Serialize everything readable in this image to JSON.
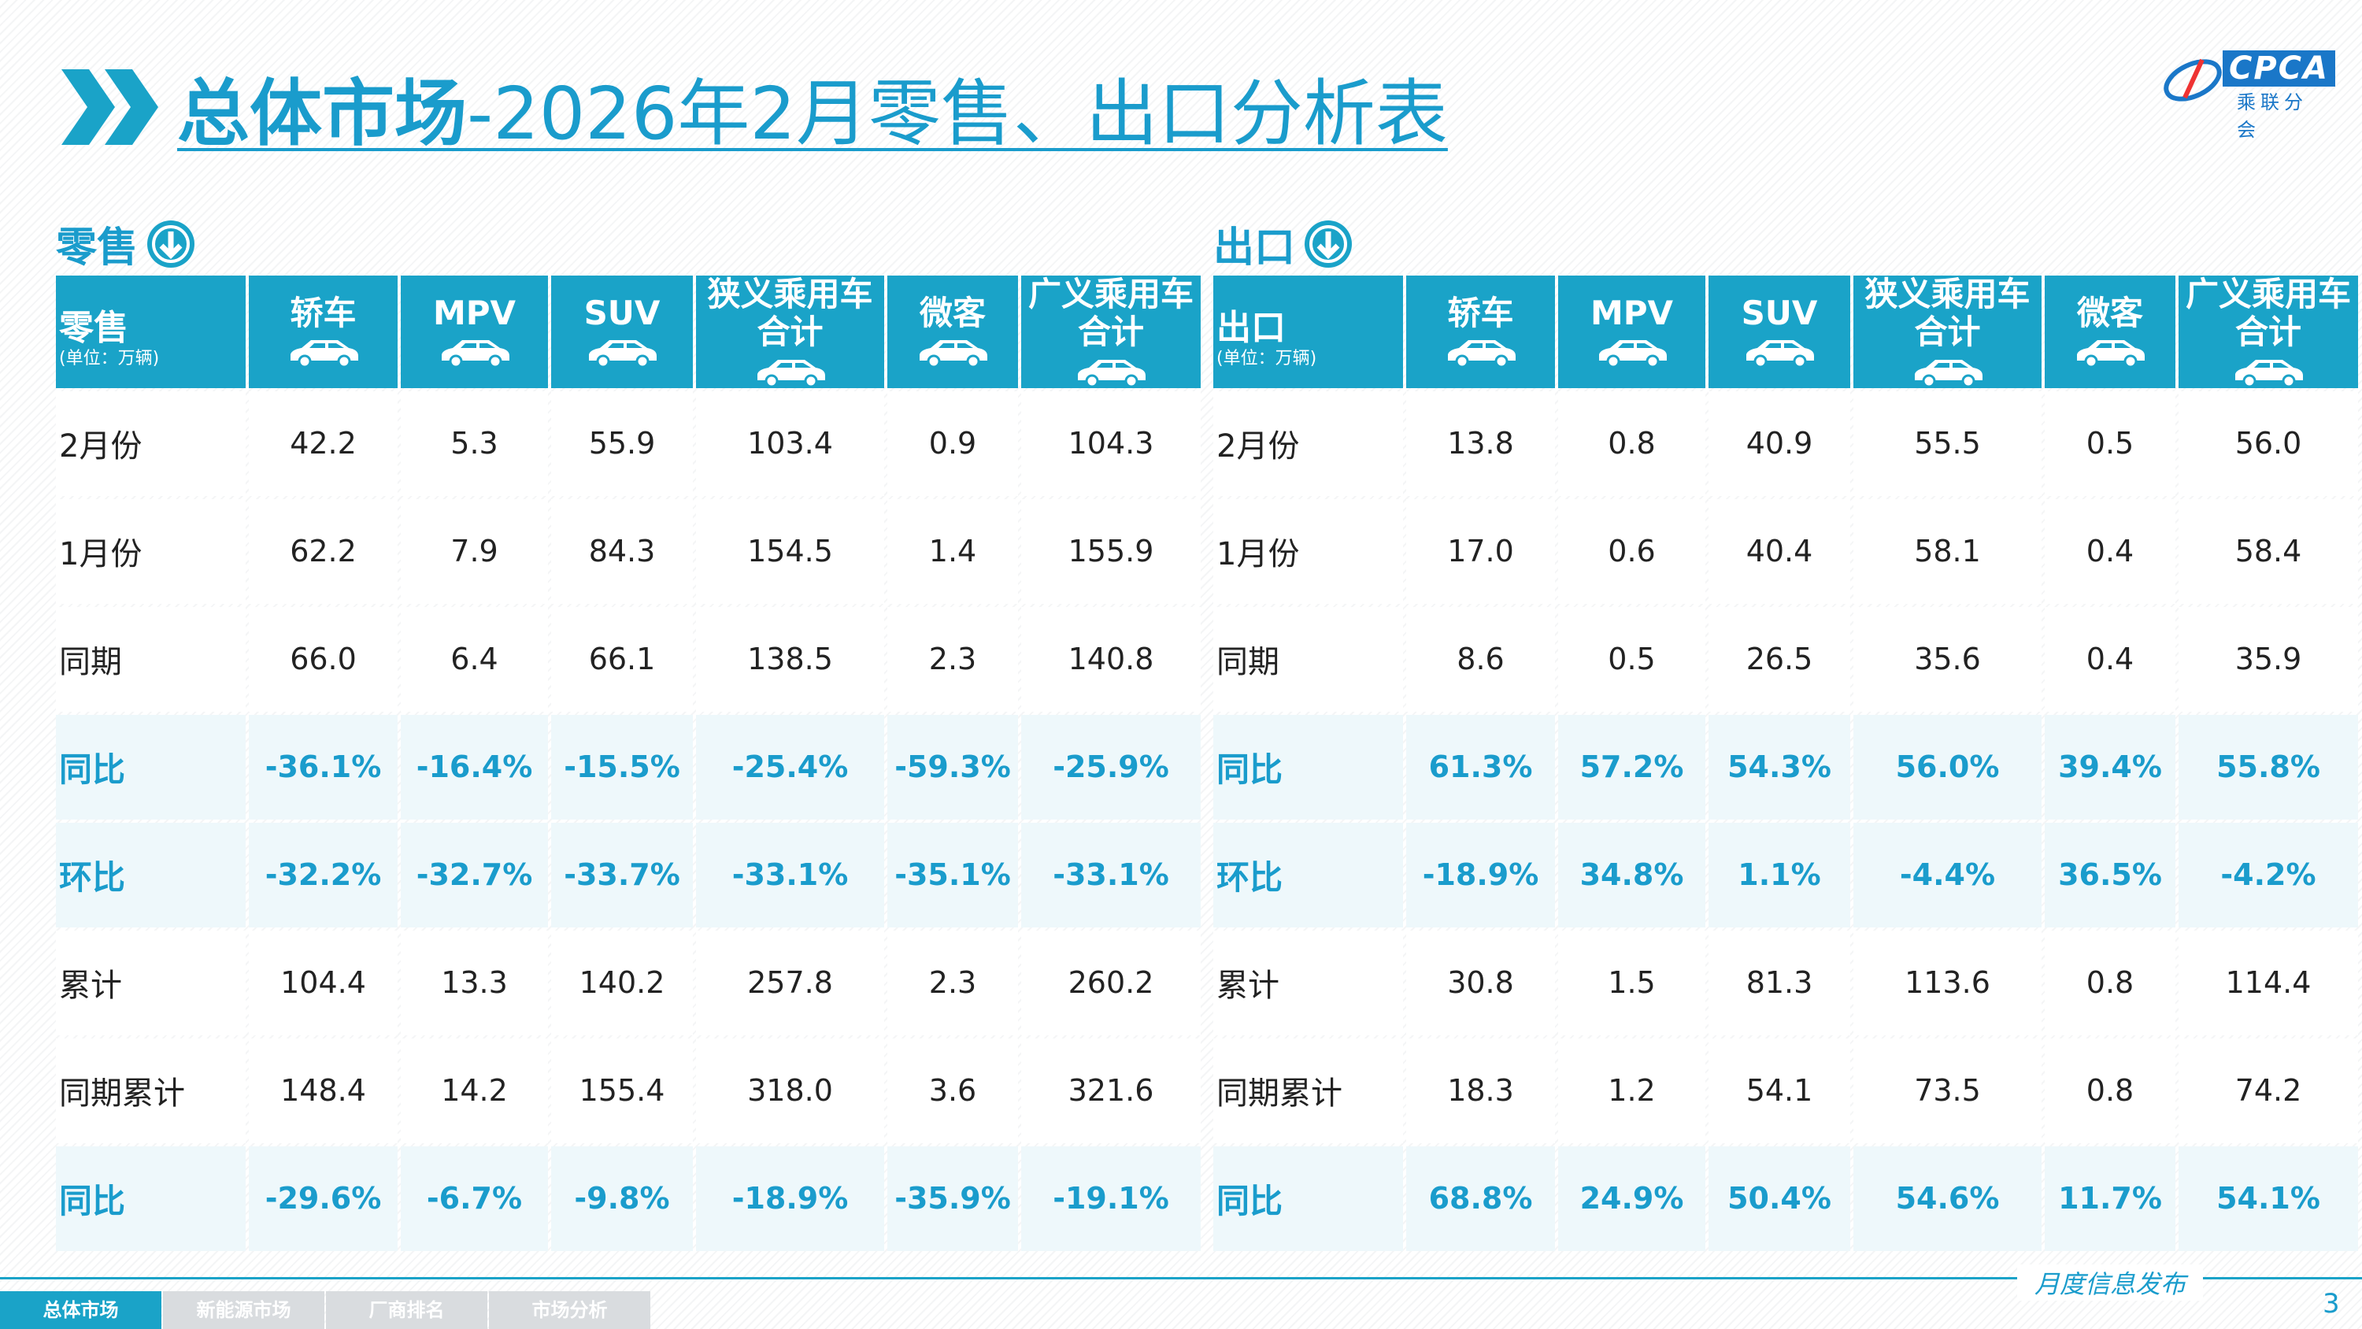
{
  "header": {
    "title_bold": "总体市场",
    "title_rest": "-2026年2月零售、出口分析表"
  },
  "logo": {
    "text": "CPCA",
    "sub": "乘联分会"
  },
  "tables": [
    {
      "label": "零售",
      "corner": "零售",
      "unit": "(单位：万辆)",
      "columns": [
        [
          "轿车"
        ],
        [
          "MPV"
        ],
        [
          "SUV"
        ],
        [
          "狭义乘用车",
          "合计"
        ],
        [
          "微客"
        ],
        [
          "广义乘用车",
          "合计"
        ]
      ],
      "rows": [
        [
          "2月份",
          "42.2",
          "5.3",
          "55.9",
          "103.4",
          "0.9",
          "104.3"
        ],
        [
          "1月份",
          "62.2",
          "7.9",
          "84.3",
          "154.5",
          "1.4",
          "155.9"
        ],
        [
          "同期",
          "66.0",
          "6.4",
          "66.1",
          "138.5",
          "2.3",
          "140.8"
        ],
        [
          "同比",
          "-36.1%",
          "-16.4%",
          "-15.5%",
          "-25.4%",
          "-59.3%",
          "-25.9%"
        ],
        [
          "环比",
          "-32.2%",
          "-32.7%",
          "-33.7%",
          "-33.1%",
          "-35.1%",
          "-33.1%"
        ],
        [
          "累计",
          "104.4",
          "13.3",
          "140.2",
          "257.8",
          "2.3",
          "260.2"
        ],
        [
          "同期累计",
          "148.4",
          "14.2",
          "155.4",
          "318.0",
          "3.6",
          "321.6"
        ],
        [
          "同比",
          "-29.6%",
          "-6.7%",
          "-9.8%",
          "-18.9%",
          "-35.9%",
          "-19.1%"
        ]
      ]
    },
    {
      "label": "出口",
      "corner": "出口",
      "unit": "(单位：万辆)",
      "columns": [
        [
          "轿车"
        ],
        [
          "MPV"
        ],
        [
          "SUV"
        ],
        [
          "狭义乘用车",
          "合计"
        ],
        [
          "微客"
        ],
        [
          "广义乘用车",
          "合计"
        ]
      ],
      "rows": [
        [
          "2月份",
          "13.8",
          "0.8",
          "40.9",
          "55.5",
          "0.5",
          "56.0"
        ],
        [
          "1月份",
          "17.0",
          "0.6",
          "40.4",
          "58.1",
          "0.4",
          "58.4"
        ],
        [
          "同期",
          "8.6",
          "0.5",
          "26.5",
          "35.6",
          "0.4",
          "35.9"
        ],
        [
          "同比",
          "61.3%",
          "57.2%",
          "54.3%",
          "56.0%",
          "39.4%",
          "55.8%"
        ],
        [
          "环比",
          "-18.9%",
          "34.8%",
          "1.1%",
          "-4.4%",
          "36.5%",
          "-4.2%"
        ],
        [
          "累计",
          "30.8",
          "1.5",
          "81.3",
          "113.6",
          "0.8",
          "114.4"
        ],
        [
          "同期累计",
          "18.3",
          "1.2",
          "54.1",
          "73.5",
          "0.8",
          "74.2"
        ],
        [
          "同比",
          "68.8%",
          "24.9%",
          "50.4%",
          "54.6%",
          "11.7%",
          "54.1%"
        ]
      ]
    }
  ],
  "footer": {
    "tagline": "月度信息发布",
    "page": "3",
    "tabs": [
      "总体市场",
      "新能源市场",
      "厂商排名",
      "市场分析"
    ]
  }
}
